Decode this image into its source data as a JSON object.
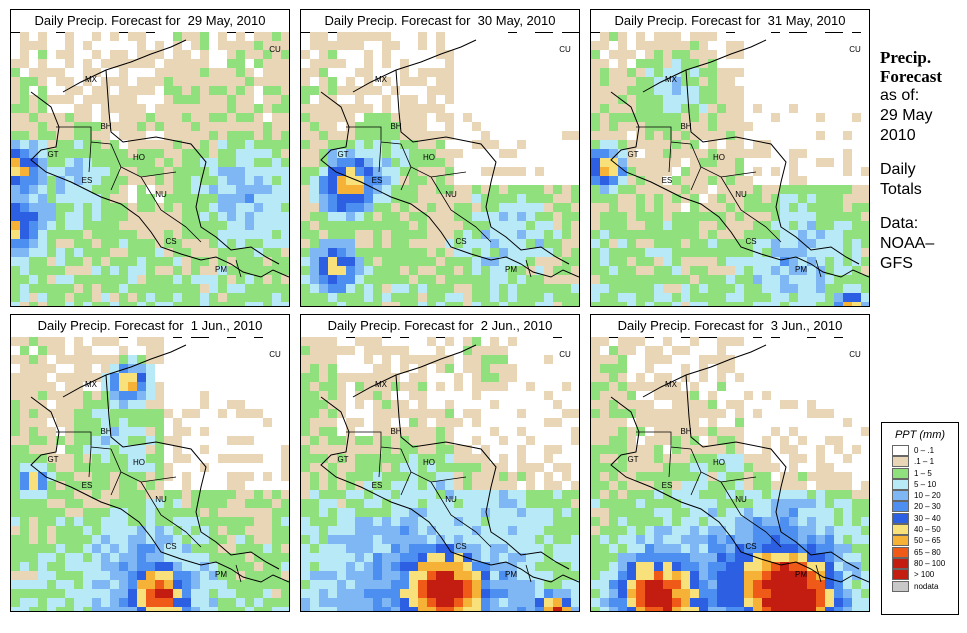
{
  "panels": [
    {
      "title": "Daily Precip. Forecast for  29 May, 2010"
    },
    {
      "title": "Daily Precip. Forecast for  30 May, 2010"
    },
    {
      "title": "Daily Precip. Forecast for  31 May, 2010"
    },
    {
      "title": "Daily Precip. Forecast for  1 Jun., 2010"
    },
    {
      "title": "Daily Precip. Forecast for  2 Jun., 2010"
    },
    {
      "title": "Daily Precip. Forecast for  3 Jun., 2010"
    }
  ],
  "country_labels": [
    "CU",
    "MX",
    "BH",
    "GT",
    "HO",
    "ES",
    "NU",
    "CS",
    "PM"
  ],
  "side": {
    "title_line1": "Precip.",
    "title_line2": "Forecast",
    "asof_line1": "as of:",
    "asof_line2": "29 May",
    "asof_line3": "2010",
    "daily_line1": "Daily",
    "daily_line2": "Totals",
    "data_line1": "Data:",
    "data_line2": "NOAA–",
    "data_line3": "GFS"
  },
  "legend": {
    "title": "PPT (mm)",
    "items": [
      {
        "label": "0 – .1",
        "color": "#ffffff"
      },
      {
        "label": ".1 – 1",
        "color": "#e9d6b7"
      },
      {
        "label": "1 – 5",
        "color": "#91e07e"
      },
      {
        "label": "5 – 10",
        "color": "#b8e9f7"
      },
      {
        "label": "10 – 20",
        "color": "#7fb6f4"
      },
      {
        "label": "20 – 30",
        "color": "#4d8ff0"
      },
      {
        "label": "30 – 40",
        "color": "#2d5fe3"
      },
      {
        "label": "40 – 50",
        "color": "#f8e07a"
      },
      {
        "label": "50 – 65",
        "color": "#f6b236"
      },
      {
        "label": "65 – 80",
        "color": "#ef5a18"
      },
      {
        "label": "80 – 100",
        "color": "#c31d12"
      },
      {
        "label": "> 100",
        "color": "#c31d12"
      },
      {
        "label": "nodata",
        "color": "#c8c8c8"
      }
    ]
  }
}
